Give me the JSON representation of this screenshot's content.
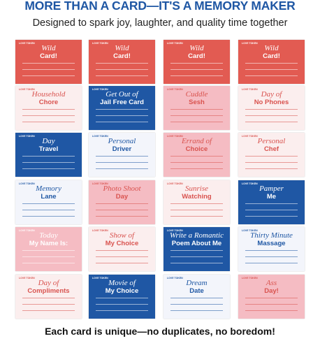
{
  "header": {
    "title": "MORE THAN A CARD—IT'S A MEMORY MAKER",
    "subtitle": "Designed to spark joy, laughter, and quality time together"
  },
  "cards": [
    {
      "script": "Wild",
      "title": "Card!",
      "tag": "LOVE TOKEN",
      "color": "#e25b52",
      "text_color": "#ffffff"
    },
    {
      "script": "Wild",
      "title": "Card!",
      "tag": "LOVE TOKEN",
      "color": "#e25b52",
      "text_color": "#ffffff"
    },
    {
      "script": "Wild",
      "title": "Card!",
      "tag": "LOVE TOKEN",
      "color": "#e25b52",
      "text_color": "#ffffff"
    },
    {
      "script": "Wild",
      "title": "Card!",
      "tag": "LOVE TOKEN",
      "color": "#e25b52",
      "text_color": "#ffffff"
    },
    {
      "script": "Household",
      "title": "Chore",
      "tag": "LOVE TOKEN",
      "color": "#fbeeee",
      "text_color": "#d9534f"
    },
    {
      "script": "Get Out of",
      "title": "Jail Free Card",
      "tag": "LOVE TOKEN",
      "color": "#1f57a4",
      "text_color": "#ffffff"
    },
    {
      "script": "Cuddle",
      "title": "Sesh",
      "tag": "LOVE TOKEN",
      "color": "#f5bcc3",
      "text_color": "#d9534f"
    },
    {
      "script": "Day of",
      "title": "No Phones",
      "tag": "LOVE TOKEN",
      "color": "#fbeeee",
      "text_color": "#d9534f"
    },
    {
      "script": "Day",
      "title": "Travel",
      "tag": "LOVE TOKEN",
      "color": "#1f57a4",
      "text_color": "#ffffff"
    },
    {
      "script": "Personal",
      "title": "Driver",
      "tag": "LOVE TOKEN",
      "color": "#f3f5fb",
      "text_color": "#1f57a4"
    },
    {
      "script": "Errand of",
      "title": "Choice",
      "tag": "LOVE TOKEN",
      "color": "#f5bcc3",
      "text_color": "#d9534f"
    },
    {
      "script": "Personal",
      "title": "Chef",
      "tag": "LOVE TOKEN",
      "color": "#fbeeee",
      "text_color": "#d9534f"
    },
    {
      "script": "Memory",
      "title": "Lane",
      "tag": "LOVE TOKEN",
      "color": "#f3f5fb",
      "text_color": "#1f57a4"
    },
    {
      "script": "Photo Shoot",
      "title": "Day",
      "tag": "LOVE TOKEN",
      "color": "#f5bcc3",
      "text_color": "#d9534f"
    },
    {
      "script": "Sunrise",
      "title": "Watching",
      "tag": "LOVE TOKEN",
      "color": "#fbeeee",
      "text_color": "#d9534f"
    },
    {
      "script": "Pamper",
      "title": "Me",
      "tag": "LOVE TOKEN",
      "color": "#1f57a4",
      "text_color": "#ffffff"
    },
    {
      "script": "Today",
      "title": "My Name Is:",
      "tag": "LOVE TOKEN",
      "color": "#f5bcc3",
      "text_color": "#ffffff"
    },
    {
      "script": "Show of",
      "title": "My Choice",
      "tag": "LOVE TOKEN",
      "color": "#fbeeee",
      "text_color": "#d9534f"
    },
    {
      "script": "Write a Romantic",
      "title": "Poem About Me",
      "tag": "LOVE TOKEN",
      "color": "#1f57a4",
      "text_color": "#ffffff"
    },
    {
      "script": "Thirty Minute",
      "title": "Massage",
      "tag": "LOVE TOKEN",
      "color": "#f3f5fb",
      "text_color": "#1f57a4"
    },
    {
      "script": "Day of",
      "title": "Compliments",
      "tag": "LOVE TOKEN",
      "color": "#fbeeee",
      "text_color": "#d9534f"
    },
    {
      "script": "Movie of",
      "title": "My Choice",
      "tag": "LOVE TOKEN",
      "color": "#1f57a4",
      "text_color": "#ffffff"
    },
    {
      "script": "Dream",
      "title": "Date",
      "tag": "LOVE TOKEN",
      "color": "#f3f5fb",
      "text_color": "#1f57a4"
    },
    {
      "script": "Ass",
      "title": "Day!",
      "tag": "LOVE TOKEN",
      "color": "#f5bcc3",
      "text_color": "#d9534f"
    }
  ],
  "footer": {
    "text": "Each card is unique—no duplicates, no boredom!"
  }
}
